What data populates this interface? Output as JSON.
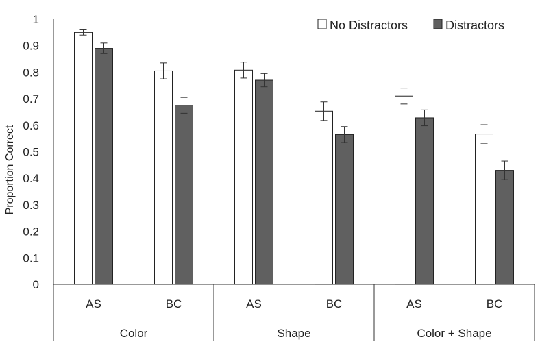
{
  "chart_data": {
    "type": "bar",
    "title": "",
    "xlabel": "",
    "ylabel": "Proportion Correct",
    "ylim": [
      0,
      1
    ],
    "yticks": [
      0,
      0.1,
      0.2,
      0.3,
      0.4,
      0.5,
      0.6,
      0.7,
      0.8,
      0.9,
      1
    ],
    "ytick_labels": [
      "0",
      "0.1",
      "0.2",
      "0.3",
      "0.4",
      "0.5",
      "0.6",
      "0.7",
      "0.8",
      "0.9",
      "1"
    ],
    "grid": false,
    "legend_position": "top-right",
    "groups": [
      "Color",
      "Shape",
      "Color + Shape"
    ],
    "categories": [
      "AS",
      "BC",
      "AS",
      "BC",
      "AS",
      "BC"
    ],
    "series": [
      {
        "name": "No Distractors",
        "color": "#ffffff",
        "values": [
          0.95,
          0.805,
          0.808,
          0.653,
          0.71,
          0.567
        ],
        "errors": [
          0.01,
          0.03,
          0.03,
          0.035,
          0.03,
          0.035
        ]
      },
      {
        "name": "Distractors",
        "color": "#606060",
        "values": [
          0.89,
          0.675,
          0.77,
          0.565,
          0.628,
          0.43
        ],
        "errors": [
          0.02,
          0.03,
          0.025,
          0.03,
          0.03,
          0.035
        ]
      }
    ]
  }
}
